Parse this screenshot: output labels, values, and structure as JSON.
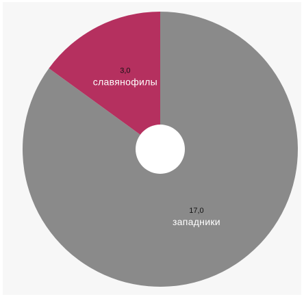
{
  "chart_data": {
    "type": "pie",
    "donut": true,
    "slices": [
      {
        "label": "славянофилы",
        "value": 3.0,
        "value_label": "3,0",
        "color": "#b5305f"
      },
      {
        "label": "западники",
        "value": 17.0,
        "value_label": "17,0",
        "color": "#8a8a8a"
      }
    ],
    "start_angle_deg": 0,
    "direction": "counterclockwise",
    "legend": "none",
    "hole_color": "#ffffff",
    "background_color": "#f7f7f7"
  }
}
